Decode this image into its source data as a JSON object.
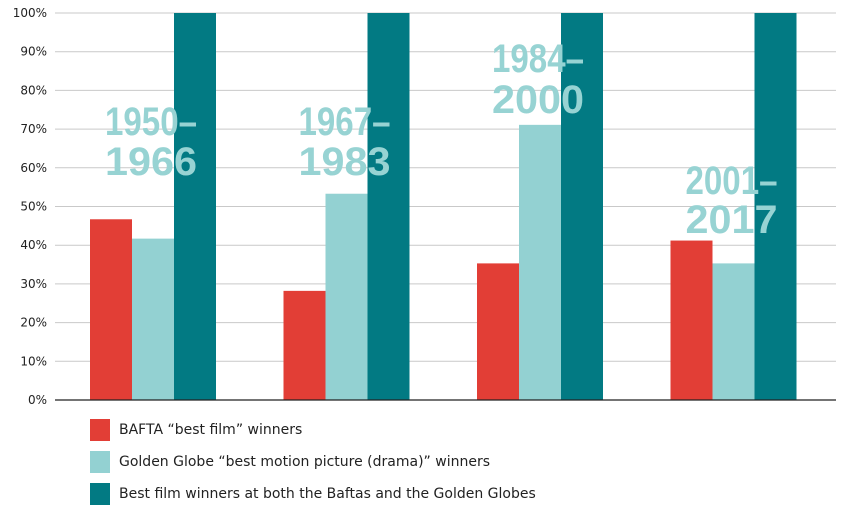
{
  "chart_data": {
    "type": "bar",
    "categories": [
      "1950–1966",
      "1967–1983",
      "1984–2000",
      "2001–2017"
    ],
    "category_labels": [
      [
        "1950–",
        "1966"
      ],
      [
        "1967–",
        "1983"
      ],
      [
        "1984–",
        "2000"
      ],
      [
        "2001–",
        "2017"
      ]
    ],
    "series": [
      {
        "name": "BAFTA “best film” winners",
        "color": "#e23e36",
        "values": [
          46.7,
          28.2,
          35.3,
          41.2
        ]
      },
      {
        "name": "Golden Globe “best motion picture (drama)” winners",
        "color": "#93d1d2",
        "values": [
          41.7,
          53.3,
          71.1,
          35.3
        ]
      },
      {
        "name": "Best film winners at both the Baftas and the Golden Globes",
        "color": "#027a83",
        "values": [
          100,
          100,
          100,
          100
        ]
      }
    ],
    "y_ticks": [
      "0%",
      "10%",
      "20%",
      "30%",
      "40%",
      "50%",
      "60%",
      "70%",
      "80%",
      "90%",
      "100%"
    ],
    "ylim": [
      0,
      100
    ],
    "grid": true,
    "legend_placement": "bottom-left"
  }
}
